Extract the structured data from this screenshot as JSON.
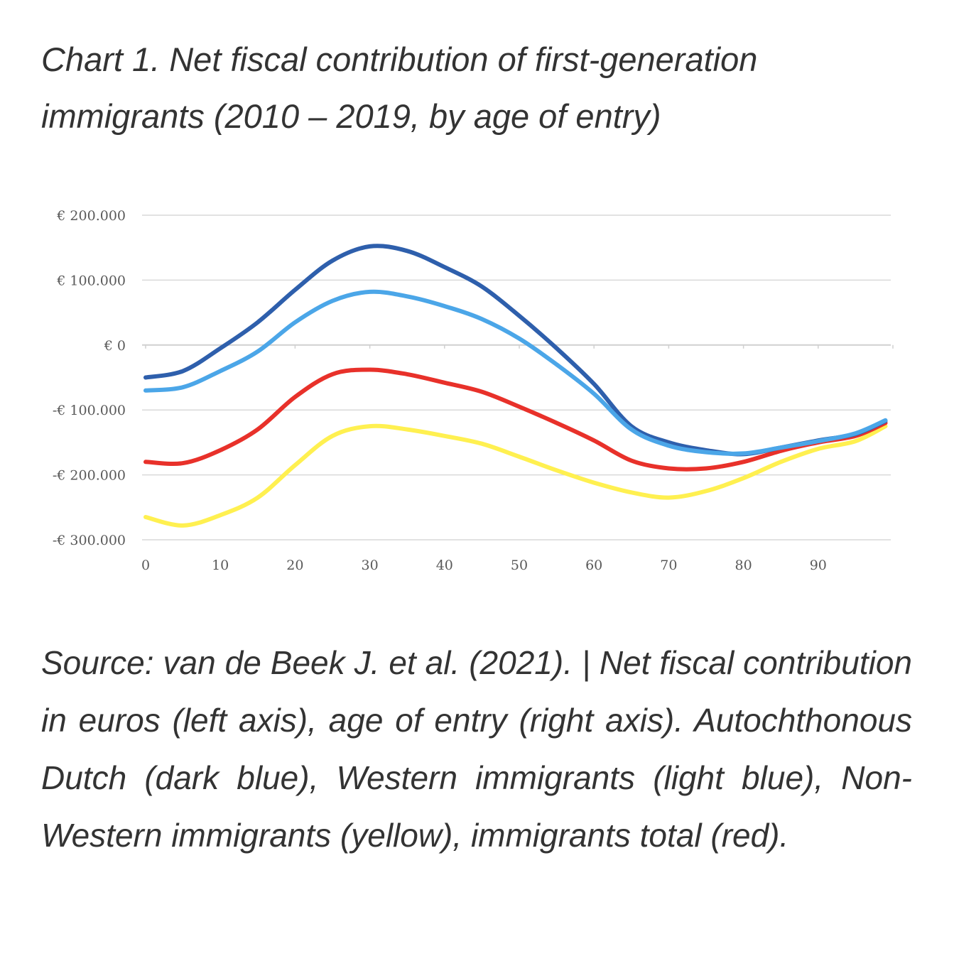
{
  "title": "Chart 1. Net fiscal contribution of first-generation immigrants (2010 – 2019, by age of entry)",
  "caption": "Source: van de Beek J. et al. (2021). | Net fiscal contribution in euros (left axis), age of entry (right axis). Autochthonous Dutch (dark blue), Western immigrants (light blue), Non-Western immigrants (yellow), immigrants total (red).",
  "chart_data": {
    "type": "line",
    "title": "",
    "xlabel": "",
    "ylabel": "",
    "xlim": [
      0,
      99
    ],
    "ylim": [
      -300000,
      200000
    ],
    "grid": true,
    "x_ticks": [
      0,
      10,
      20,
      30,
      40,
      50,
      60,
      70,
      80,
      90
    ],
    "x_tick_labels": [
      "0",
      "10",
      "20",
      "30",
      "40",
      "50",
      "60",
      "70",
      "80",
      "90"
    ],
    "y_ticks": [
      200000,
      100000,
      0,
      -100000,
      -200000,
      -300000
    ],
    "y_tick_labels": [
      "€ 200.000",
      "€ 100.000",
      "€ 0",
      "-€ 100.000",
      "-€ 200.000",
      "-€ 300.000"
    ],
    "x": [
      0,
      5,
      10,
      15,
      20,
      25,
      30,
      35,
      40,
      45,
      50,
      55,
      60,
      65,
      70,
      75,
      80,
      85,
      90,
      95,
      99
    ],
    "series": [
      {
        "color": "#2E5FAC",
        "values": [
          -50000,
          -40000,
          -5000,
          35000,
          85000,
          130000,
          152000,
          145000,
          120000,
          90000,
          45000,
          -5000,
          -60000,
          -125000,
          -150000,
          -162000,
          -168000,
          -158000,
          -147000,
          -137000,
          -117000
        ]
      },
      {
        "color": "#4BA6E8",
        "values": [
          -70000,
          -65000,
          -40000,
          -10000,
          35000,
          68000,
          82000,
          75000,
          60000,
          40000,
          10000,
          -30000,
          -75000,
          -130000,
          -155000,
          -165000,
          -167000,
          -158000,
          -148000,
          -136000,
          -116000
        ]
      },
      {
        "color": "#E8312A",
        "values": [
          -180000,
          -182000,
          -162000,
          -130000,
          -80000,
          -45000,
          -38000,
          -45000,
          -58000,
          -72000,
          -95000,
          -120000,
          -147000,
          -178000,
          -190000,
          -190000,
          -180000,
          -163000,
          -150000,
          -140000,
          -120000
        ]
      },
      {
        "color": "#FFF050",
        "values": [
          -265000,
          -278000,
          -262000,
          -235000,
          -185000,
          -140000,
          -125000,
          -130000,
          -140000,
          -152000,
          -172000,
          -193000,
          -212000,
          -227000,
          -235000,
          -225000,
          -205000,
          -180000,
          -160000,
          -148000,
          -125000
        ]
      }
    ]
  }
}
